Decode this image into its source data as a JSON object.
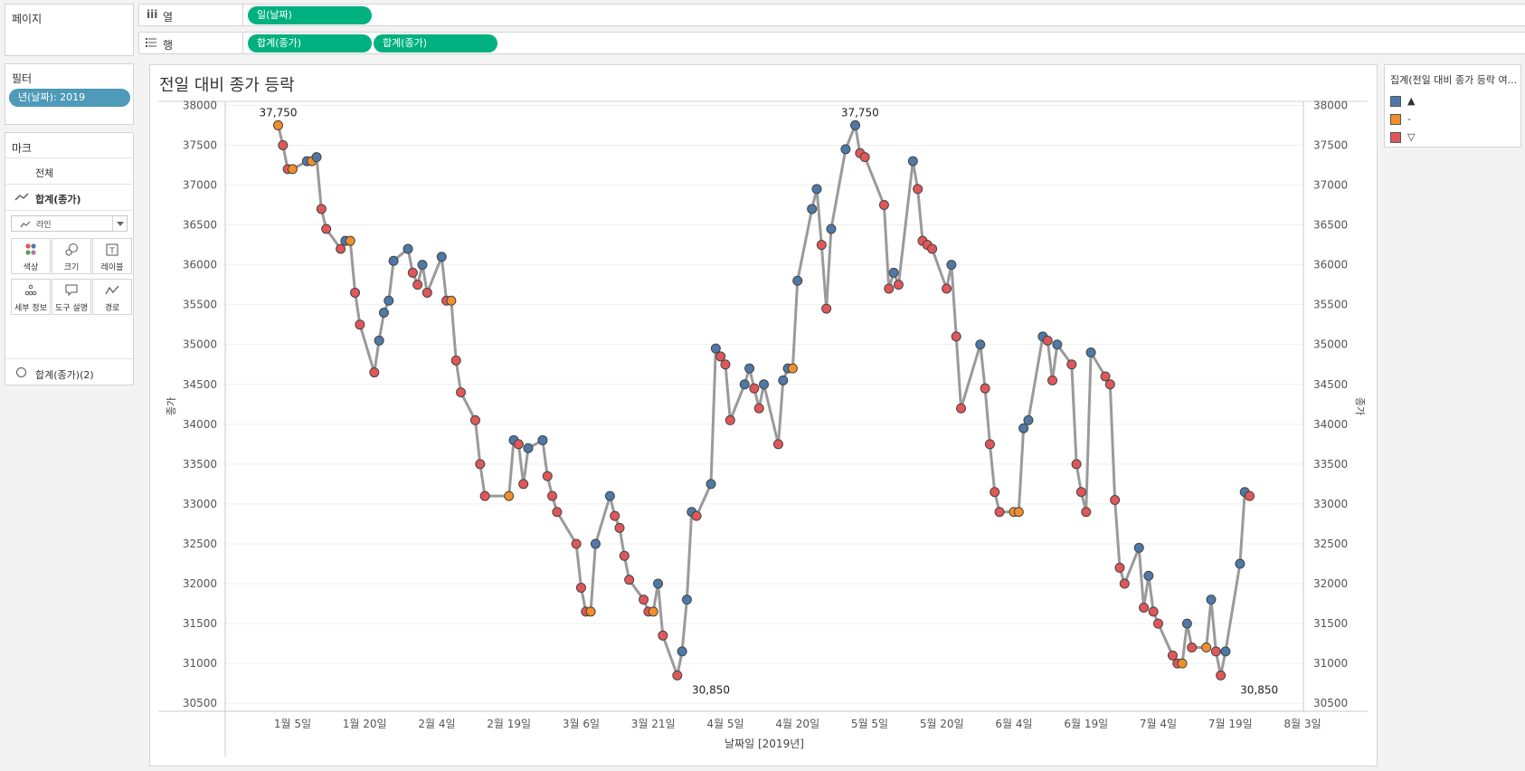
{
  "shelves": {
    "pages_label": "페이지",
    "columns_icon": "iii",
    "columns_label": "열",
    "columns_pill": "일(날짜)",
    "rows_icon": "list-icon",
    "rows_label": "행",
    "rows_pills": [
      "합계(종가)",
      "합계(종가)"
    ]
  },
  "filters": {
    "title": "필터",
    "pill": "년(날짜): 2019"
  },
  "marks": {
    "title": "마크",
    "all_label": "전체",
    "series1_label": "합계(종가)",
    "mark_type": "라인",
    "buttons": [
      {
        "icon": "color-icon",
        "label": "색상"
      },
      {
        "icon": "size-icon",
        "label": "크기"
      },
      {
        "icon": "label-icon",
        "label": "레이블"
      },
      {
        "icon": "detail-icon",
        "label": "세부 정보"
      },
      {
        "icon": "tooltip-icon",
        "label": "도구 설명"
      },
      {
        "icon": "path-icon",
        "label": "경로"
      }
    ],
    "series2_label": "합계(종가)(2)"
  },
  "legend": {
    "title": "집계(전일 대비 종가 등락 여...",
    "items": [
      {
        "label": "▲",
        "color": "#4e79a7"
      },
      {
        "label": "-",
        "color": "#f28e2b"
      },
      {
        "label": "▽",
        "color": "#e15759"
      }
    ]
  },
  "chart_data": {
    "type": "line",
    "title": "전일 대비 종가 등락",
    "xlabel": "날짜일 [2019년]",
    "ylabel_left": "종가",
    "ylabel_right": "종가",
    "ylim": [
      30400,
      38050
    ],
    "xlim_days": [
      -10,
      214
    ],
    "yticks": [
      30500,
      31000,
      31500,
      32000,
      32500,
      33000,
      33500,
      34000,
      34500,
      35000,
      35500,
      36000,
      36500,
      37000,
      37500,
      38000
    ],
    "xticks": [
      {
        "label": "1월 5일",
        "day": 4
      },
      {
        "label": "1월 20일",
        "day": 19
      },
      {
        "label": "2월 4일",
        "day": 34
      },
      {
        "label": "2월 19일",
        "day": 49
      },
      {
        "label": "3월 6일",
        "day": 64
      },
      {
        "label": "3월 21일",
        "day": 79
      },
      {
        "label": "4월 5일",
        "day": 94
      },
      {
        "label": "4월 20일",
        "day": 109
      },
      {
        "label": "5월 5일",
        "day": 124
      },
      {
        "label": "5월 20일",
        "day": 139
      },
      {
        "label": "6월 4일",
        "day": 154
      },
      {
        "label": "6월 19일",
        "day": 169
      },
      {
        "label": "7월 4일",
        "day": 184
      },
      {
        "label": "7월 19일",
        "day": 199
      },
      {
        "label": "8월 3일",
        "day": 214
      }
    ],
    "annotations": [
      {
        "day": 1,
        "value": 37750,
        "label": "37,750",
        "pos": "above"
      },
      {
        "day": 122,
        "value": 37750,
        "label": "37,750",
        "pos": "above"
      },
      {
        "day": 91,
        "value": 30850,
        "label": "30,850",
        "pos": "below"
      },
      {
        "day": 205,
        "value": 30850,
        "label": "30,850",
        "pos": "below"
      }
    ],
    "status_colors": {
      "up": "#4e79a7",
      "flat": "#f28e2b",
      "down": "#e15759"
    },
    "points": [
      {
        "day": 1,
        "value": 37750,
        "status": "flat"
      },
      {
        "day": 2,
        "value": 37500,
        "status": "down"
      },
      {
        "day": 3,
        "value": 37200,
        "status": "down"
      },
      {
        "day": 4,
        "value": 37200,
        "status": "flat"
      },
      {
        "day": 7,
        "value": 37300,
        "status": "up"
      },
      {
        "day": 8,
        "value": 37300,
        "status": "flat"
      },
      {
        "day": 9,
        "value": 37350,
        "status": "up"
      },
      {
        "day": 10,
        "value": 36700,
        "status": "down"
      },
      {
        "day": 11,
        "value": 36450,
        "status": "down"
      },
      {
        "day": 14,
        "value": 36200,
        "status": "down"
      },
      {
        "day": 15,
        "value": 36300,
        "status": "up"
      },
      {
        "day": 16,
        "value": 36300,
        "status": "flat"
      },
      {
        "day": 17,
        "value": 35650,
        "status": "down"
      },
      {
        "day": 18,
        "value": 35250,
        "status": "down"
      },
      {
        "day": 21,
        "value": 34650,
        "status": "down"
      },
      {
        "day": 22,
        "value": 35050,
        "status": "up"
      },
      {
        "day": 23,
        "value": 35400,
        "status": "up"
      },
      {
        "day": 24,
        "value": 35550,
        "status": "up"
      },
      {
        "day": 25,
        "value": 36050,
        "status": "up"
      },
      {
        "day": 28,
        "value": 36200,
        "status": "up"
      },
      {
        "day": 29,
        "value": 35900,
        "status": "down"
      },
      {
        "day": 30,
        "value": 35750,
        "status": "down"
      },
      {
        "day": 31,
        "value": 36000,
        "status": "up"
      },
      {
        "day": 32,
        "value": 35650,
        "status": "down"
      },
      {
        "day": 35,
        "value": 36100,
        "status": "up"
      },
      {
        "day": 36,
        "value": 35550,
        "status": "down"
      },
      {
        "day": 37,
        "value": 35550,
        "status": "flat"
      },
      {
        "day": 38,
        "value": 34800,
        "status": "down"
      },
      {
        "day": 39,
        "value": 34400,
        "status": "down"
      },
      {
        "day": 42,
        "value": 34050,
        "status": "down"
      },
      {
        "day": 43,
        "value": 33500,
        "status": "down"
      },
      {
        "day": 44,
        "value": 33100,
        "status": "down"
      },
      {
        "day": 49,
        "value": 33100,
        "status": "flat"
      },
      {
        "day": 50,
        "value": 33800,
        "status": "up"
      },
      {
        "day": 51,
        "value": 33750,
        "status": "down"
      },
      {
        "day": 52,
        "value": 33250,
        "status": "down"
      },
      {
        "day": 53,
        "value": 33700,
        "status": "up"
      },
      {
        "day": 56,
        "value": 33800,
        "status": "up"
      },
      {
        "day": 57,
        "value": 33350,
        "status": "down"
      },
      {
        "day": 58,
        "value": 33100,
        "status": "down"
      },
      {
        "day": 59,
        "value": 32900,
        "status": "down"
      },
      {
        "day": 63,
        "value": 32500,
        "status": "down"
      },
      {
        "day": 64,
        "value": 31950,
        "status": "down"
      },
      {
        "day": 65,
        "value": 31650,
        "status": "down"
      },
      {
        "day": 66,
        "value": 31650,
        "status": "flat"
      },
      {
        "day": 67,
        "value": 32500,
        "status": "up"
      },
      {
        "day": 70,
        "value": 33100,
        "status": "up"
      },
      {
        "day": 71,
        "value": 32850,
        "status": "down"
      },
      {
        "day": 72,
        "value": 32700,
        "status": "down"
      },
      {
        "day": 73,
        "value": 32350,
        "status": "down"
      },
      {
        "day": 74,
        "value": 32050,
        "status": "down"
      },
      {
        "day": 77,
        "value": 31800,
        "status": "down"
      },
      {
        "day": 78,
        "value": 31650,
        "status": "down"
      },
      {
        "day": 79,
        "value": 31650,
        "status": "flat"
      },
      {
        "day": 80,
        "value": 32000,
        "status": "up"
      },
      {
        "day": 81,
        "value": 31350,
        "status": "down"
      },
      {
        "day": 84,
        "value": 30850,
        "status": "down"
      },
      {
        "day": 85,
        "value": 31150,
        "status": "up"
      },
      {
        "day": 86,
        "value": 31800,
        "status": "up"
      },
      {
        "day": 87,
        "value": 32900,
        "status": "up"
      },
      {
        "day": 88,
        "value": 32850,
        "status": "down"
      },
      {
        "day": 91,
        "value": 33250,
        "status": "up"
      },
      {
        "day": 92,
        "value": 34950,
        "status": "up"
      },
      {
        "day": 93,
        "value": 34850,
        "status": "down"
      },
      {
        "day": 94,
        "value": 34750,
        "status": "down"
      },
      {
        "day": 95,
        "value": 34050,
        "status": "down"
      },
      {
        "day": 98,
        "value": 34500,
        "status": "up"
      },
      {
        "day": 99,
        "value": 34700,
        "status": "up"
      },
      {
        "day": 100,
        "value": 34450,
        "status": "down"
      },
      {
        "day": 101,
        "value": 34200,
        "status": "down"
      },
      {
        "day": 102,
        "value": 34500,
        "status": "up"
      },
      {
        "day": 105,
        "value": 33750,
        "status": "down"
      },
      {
        "day": 106,
        "value": 34550,
        "status": "up"
      },
      {
        "day": 107,
        "value": 34700,
        "status": "up"
      },
      {
        "day": 108,
        "value": 34700,
        "status": "flat"
      },
      {
        "day": 109,
        "value": 35800,
        "status": "up"
      },
      {
        "day": 112,
        "value": 36700,
        "status": "up"
      },
      {
        "day": 113,
        "value": 36950,
        "status": "up"
      },
      {
        "day": 114,
        "value": 36250,
        "status": "down"
      },
      {
        "day": 115,
        "value": 35450,
        "status": "down"
      },
      {
        "day": 116,
        "value": 36450,
        "status": "up"
      },
      {
        "day": 119,
        "value": 37450,
        "status": "up"
      },
      {
        "day": 121,
        "value": 37750,
        "status": "up"
      },
      {
        "day": 122,
        "value": 37400,
        "status": "down"
      },
      {
        "day": 123,
        "value": 37350,
        "status": "down"
      },
      {
        "day": 127,
        "value": 36750,
        "status": "down"
      },
      {
        "day": 128,
        "value": 35700,
        "status": "down"
      },
      {
        "day": 129,
        "value": 35900,
        "status": "up"
      },
      {
        "day": 130,
        "value": 35750,
        "status": "down"
      },
      {
        "day": 133,
        "value": 37300,
        "status": "up"
      },
      {
        "day": 134,
        "value": 36950,
        "status": "down"
      },
      {
        "day": 135,
        "value": 36300,
        "status": "down"
      },
      {
        "day": 136,
        "value": 36250,
        "status": "down"
      },
      {
        "day": 137,
        "value": 36200,
        "status": "down"
      },
      {
        "day": 140,
        "value": 35700,
        "status": "down"
      },
      {
        "day": 141,
        "value": 36000,
        "status": "up"
      },
      {
        "day": 142,
        "value": 35100,
        "status": "down"
      },
      {
        "day": 143,
        "value": 34200,
        "status": "down"
      },
      {
        "day": 147,
        "value": 35000,
        "status": "up"
      },
      {
        "day": 148,
        "value": 34450,
        "status": "down"
      },
      {
        "day": 149,
        "value": 33750,
        "status": "down"
      },
      {
        "day": 150,
        "value": 33150,
        "status": "down"
      },
      {
        "day": 151,
        "value": 32900,
        "status": "down"
      },
      {
        "day": 154,
        "value": 32900,
        "status": "flat"
      },
      {
        "day": 155,
        "value": 32900,
        "status": "flat"
      },
      {
        "day": 156,
        "value": 33950,
        "status": "up"
      },
      {
        "day": 157,
        "value": 34050,
        "status": "up"
      },
      {
        "day": 160,
        "value": 35100,
        "status": "up"
      },
      {
        "day": 161,
        "value": 35050,
        "status": "down"
      },
      {
        "day": 162,
        "value": 34550,
        "status": "down"
      },
      {
        "day": 163,
        "value": 35000,
        "status": "up"
      },
      {
        "day": 166,
        "value": 34750,
        "status": "down"
      },
      {
        "day": 167,
        "value": 33500,
        "status": "down"
      },
      {
        "day": 168,
        "value": 33150,
        "status": "down"
      },
      {
        "day": 169,
        "value": 32900,
        "status": "down"
      },
      {
        "day": 170,
        "value": 34900,
        "status": "up"
      },
      {
        "day": 173,
        "value": 34600,
        "status": "down"
      },
      {
        "day": 174,
        "value": 34500,
        "status": "down"
      },
      {
        "day": 175,
        "value": 33050,
        "status": "down"
      },
      {
        "day": 176,
        "value": 32200,
        "status": "down"
      },
      {
        "day": 177,
        "value": 32000,
        "status": "down"
      },
      {
        "day": 180,
        "value": 32450,
        "status": "up"
      },
      {
        "day": 181,
        "value": 31700,
        "status": "down"
      },
      {
        "day": 182,
        "value": 32100,
        "status": "up"
      },
      {
        "day": 183,
        "value": 31650,
        "status": "down"
      },
      {
        "day": 184,
        "value": 31500,
        "status": "down"
      },
      {
        "day": 187,
        "value": 31100,
        "status": "down"
      },
      {
        "day": 188,
        "value": 31000,
        "status": "down"
      },
      {
        "day": 189,
        "value": 31000,
        "status": "flat"
      },
      {
        "day": 190,
        "value": 31500,
        "status": "up"
      },
      {
        "day": 191,
        "value": 31200,
        "status": "down"
      },
      {
        "day": 194,
        "value": 31200,
        "status": "flat"
      },
      {
        "day": 195,
        "value": 31800,
        "status": "up"
      },
      {
        "day": 196,
        "value": 31150,
        "status": "down"
      },
      {
        "day": 197,
        "value": 30850,
        "status": "down"
      },
      {
        "day": 198,
        "value": 31150,
        "status": "up"
      },
      {
        "day": 201,
        "value": 32250,
        "status": "up"
      },
      {
        "day": 202,
        "value": 33150,
        "status": "up"
      },
      {
        "day": 203,
        "value": 33100,
        "status": "down"
      }
    ]
  }
}
